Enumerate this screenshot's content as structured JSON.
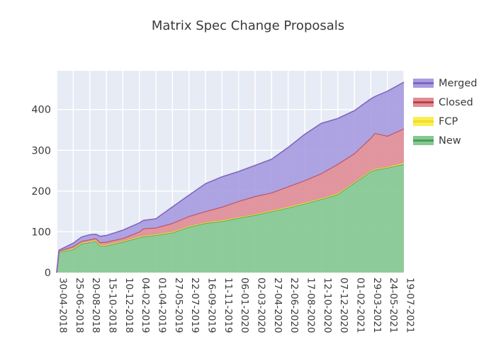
{
  "chart_data": {
    "type": "area",
    "stacked": true,
    "title": "Matrix Spec Change Proposals",
    "xlabel": "",
    "ylabel": "",
    "grid": true,
    "legend_position": "right",
    "plot_background": "#e6ebf5",
    "grid_color": "#ffffff",
    "ylim": [
      0,
      495
    ],
    "y_ticks": [
      0,
      100,
      200,
      300,
      400
    ],
    "x_tick_labels": [
      "30-04-2018",
      "25-06-2018",
      "20-08-2018",
      "15-10-2018",
      "10-12-2018",
      "04-02-2019",
      "01-04-2019",
      "27-05-2019",
      "22-07-2019",
      "16-09-2019",
      "11-11-2019",
      "06-01-2020",
      "02-03-2020",
      "27-04-2020",
      "22-06-2020",
      "17-08-2020",
      "12-10-2020",
      "07-12-2020",
      "01-02-2021",
      "29-03-2021",
      "24-05-2021",
      "19-07-2021"
    ],
    "series": [
      {
        "name": "New",
        "fill": "#87c891",
        "line": "#4a9e60"
      },
      {
        "name": "FCP",
        "fill": "#f9ef53",
        "line": "#eedc2e"
      },
      {
        "name": "Closed",
        "fill": "#df8d97",
        "line": "#bf4044"
      },
      {
        "name": "Merged",
        "fill": "#a99ce0",
        "line": "#8165c0"
      }
    ],
    "samples": [
      {
        "date": "30-04-2018",
        "values": [
          0,
          0,
          0,
          0
        ]
      },
      {
        "date": "08-05-2018",
        "values": [
          50,
          1,
          2,
          2
        ]
      },
      {
        "date": "25-06-2018",
        "values": [
          57,
          2,
          5,
          8
        ]
      },
      {
        "date": "23-07-2018",
        "values": [
          71,
          2,
          4,
          10
        ]
      },
      {
        "date": "20-08-2018",
        "values": [
          74,
          2,
          5,
          12
        ]
      },
      {
        "date": "10-09-2018",
        "values": [
          77,
          2,
          5,
          10
        ]
      },
      {
        "date": "24-09-2018",
        "values": [
          65,
          2,
          7,
          15
        ]
      },
      {
        "date": "15-10-2018",
        "values": [
          66,
          2,
          7,
          16
        ]
      },
      {
        "date": "10-12-2018",
        "values": [
          75,
          2,
          7,
          20
        ]
      },
      {
        "date": "04-02-2019",
        "values": [
          86,
          2,
          12,
          22
        ]
      },
      {
        "date": "18-02-2019",
        "values": [
          88,
          2,
          18,
          20
        ]
      },
      {
        "date": "01-04-2019",
        "values": [
          92,
          2,
          16,
          22
        ]
      },
      {
        "date": "27-05-2019",
        "values": [
          98,
          2,
          21,
          40
        ]
      },
      {
        "date": "22-07-2019",
        "values": [
          112,
          2,
          24,
          52
        ]
      },
      {
        "date": "16-09-2019",
        "values": [
          121,
          2,
          27,
          68
        ]
      },
      {
        "date": "11-11-2019",
        "values": [
          126,
          2,
          33,
          74
        ]
      },
      {
        "date": "06-01-2020",
        "values": [
          134,
          2,
          39,
          73
        ]
      },
      {
        "date": "02-03-2020",
        "values": [
          141,
          2,
          44,
          76
        ]
      },
      {
        "date": "27-04-2020",
        "values": [
          150,
          2,
          44,
          82
        ]
      },
      {
        "date": "22-06-2020",
        "values": [
          159,
          2,
          50,
          96
        ]
      },
      {
        "date": "17-08-2020",
        "values": [
          169,
          2,
          55,
          113
        ]
      },
      {
        "date": "12-10-2020",
        "values": [
          180,
          2,
          61,
          123
        ]
      },
      {
        "date": "07-12-2020",
        "values": [
          192,
          2,
          72,
          112
        ]
      },
      {
        "date": "01-02-2021",
        "values": [
          220,
          2,
          70,
          105
        ]
      },
      {
        "date": "29-03-2021",
        "values": [
          248,
          2,
          80,
          96
        ]
      },
      {
        "date": "12-04-2021",
        "values": [
          252,
          2,
          88,
          90
        ]
      },
      {
        "date": "24-05-2021",
        "values": [
          257,
          2,
          76,
          110
        ]
      },
      {
        "date": "19-07-2021",
        "values": [
          266,
          3,
          84,
          114
        ]
      }
    ]
  }
}
